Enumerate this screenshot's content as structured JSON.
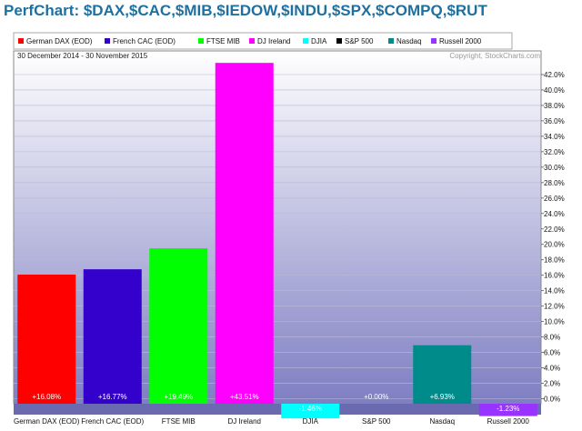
{
  "title": "PerfChart: $DAX,$CAC,$MIB,$IEDOW,$INDU,$SPX,$COMPQ,$RUT",
  "date_range": "30 December 2014 - 30 November 2015",
  "copyright": "Copyright, StockCharts.com",
  "chart_data": {
    "type": "bar",
    "categories": [
      "German DAX (EOD)",
      "French CAC (EOD)",
      "FTSE MIB",
      "DJ Ireland",
      "DJIA",
      "S&P 500",
      "Nasdaq",
      "Russell 2000"
    ],
    "legend": [
      "German DAX (EOD)",
      "French CAC (EOD)",
      "FTSE MIB",
      "DJ Ireland",
      "DJIA",
      "S&P 500",
      "Nasdaq",
      "Russell 2000"
    ],
    "values": [
      16.08,
      16.77,
      19.49,
      43.51,
      -1.46,
      0.0,
      6.93,
      -1.23
    ],
    "value_labels": [
      "+16.08%",
      "+16.77%",
      "+19.49%",
      "+43.51%",
      "-1.46%",
      "+0.00%",
      "+6.93%",
      "-1.23%"
    ],
    "colors": [
      "#ff0000",
      "#3300cc",
      "#00ff00",
      "#ff00ff",
      "#00ffff",
      "#000000",
      "#008b8b",
      "#9933ff"
    ],
    "ylim": [
      -1.6,
      43.0
    ],
    "yticks": [
      0,
      2,
      4,
      6,
      8,
      10,
      12,
      14,
      16,
      18,
      20,
      22,
      24,
      26,
      28,
      30,
      32,
      34,
      36,
      38,
      40,
      42
    ],
    "ytick_labels": [
      "0.0%",
      "2.0%",
      "4.0%",
      "6.0%",
      "8.0%",
      "10.0%",
      "12.0%",
      "14.0%",
      "16.0%",
      "18.0%",
      "20.0%",
      "22.0%",
      "24.0%",
      "26.0%",
      "28.0%",
      "30.0%",
      "32.0%",
      "34.0%",
      "36.0%",
      "38.0%",
      "40.0%",
      "42.0%"
    ],
    "y_axis_position": "right",
    "legend_position": "top",
    "grid": true,
    "background_gradient": [
      "#ffffff",
      "#7e7ec3"
    ],
    "zero_band_color": "#6a6ab0"
  }
}
